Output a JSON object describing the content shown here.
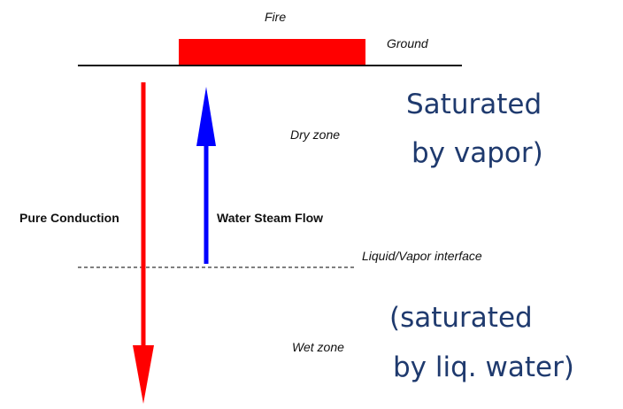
{
  "labels": {
    "fire": "Fire",
    "ground": "Ground",
    "dry_zone": "Dry zone",
    "pure_conduction": "Pure Conduction",
    "water_steam_flow": "Water Steam Flow",
    "interface": "Liquid/Vapor interface",
    "wet_zone": "Wet zone",
    "dry_note": [
      "Saturated",
      "by vapor)"
    ],
    "wet_note": [
      "(saturated",
      "by liq. water)"
    ]
  }
}
